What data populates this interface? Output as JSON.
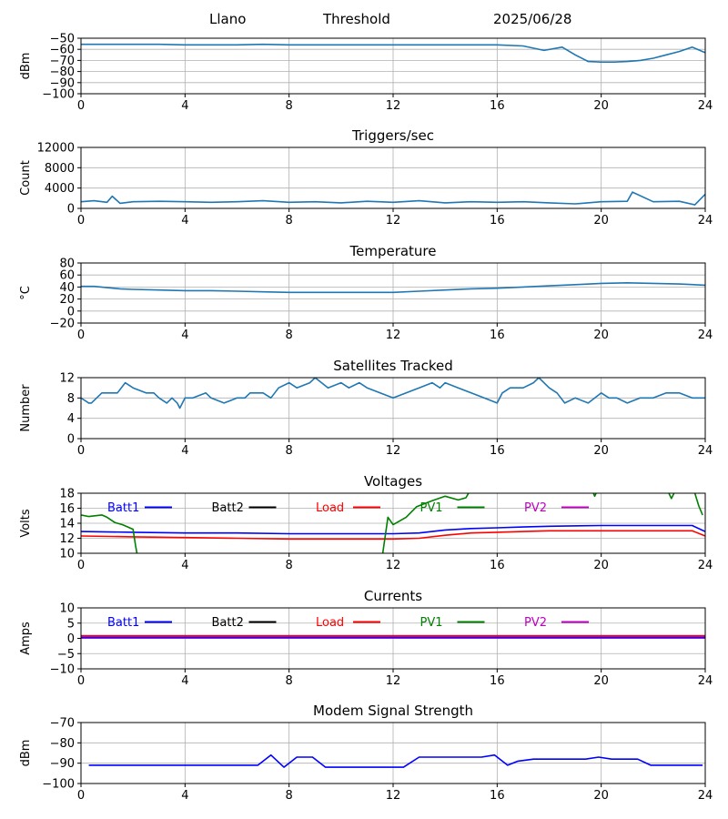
{
  "header": {
    "site": "Llano",
    "mode": "Threshold",
    "date": "2025/06/28"
  },
  "colors": {
    "default": "#1f77b4",
    "Batt1": "#0000ff",
    "Batt2": "#000000",
    "Load": "#ff0000",
    "PV1": "#008000",
    "PV2": "#bf00bf",
    "grid": "#b0b0b0"
  },
  "chart_data": [
    {
      "type": "line",
      "title": "",
      "xlabel": "",
      "ylabel": "dBm",
      "xlim": [
        0,
        24
      ],
      "ylim": [
        -100,
        -50
      ],
      "xticks": [
        0,
        4,
        8,
        12,
        16,
        20,
        24
      ],
      "yticks": [
        -100,
        -90,
        -80,
        -70,
        -60,
        -50
      ],
      "grid": true,
      "series": [
        {
          "color": "default",
          "x": [
            0,
            1,
            2,
            3,
            4,
            5,
            6,
            7,
            8,
            9,
            10,
            11,
            12,
            13,
            14,
            15,
            16,
            17,
            17.8,
            18.5,
            19,
            19.5,
            20,
            20.5,
            21,
            21.5,
            22,
            22.5,
            23,
            23.5,
            24
          ],
          "y": [
            -55.5,
            -55.5,
            -55.5,
            -55.5,
            -56,
            -56,
            -56,
            -55.5,
            -56,
            -56,
            -56,
            -56,
            -56,
            -56,
            -56,
            -56,
            -56,
            -57,
            -61,
            -58,
            -65,
            -71,
            -71.5,
            -71.5,
            -71,
            -70,
            -68,
            -65,
            -62,
            -58,
            -63
          ]
        }
      ]
    },
    {
      "type": "line",
      "title": "Triggers/sec",
      "xlabel": "",
      "ylabel": "Count",
      "xlim": [
        0,
        24
      ],
      "ylim": [
        0,
        12000
      ],
      "xticks": [
        0,
        4,
        8,
        12,
        16,
        20,
        24
      ],
      "yticks": [
        0,
        4000,
        8000,
        12000
      ],
      "grid": true,
      "series": [
        {
          "color": "default",
          "x": [
            0,
            0.5,
            1,
            1.2,
            1.5,
            2,
            3,
            4,
            5,
            6,
            7,
            8,
            9,
            10,
            11,
            12,
            13,
            14,
            15,
            16,
            17,
            18,
            19,
            20,
            21,
            21.2,
            22,
            23,
            23.6,
            24
          ],
          "y": [
            1300,
            1500,
            1200,
            2400,
            1000,
            1300,
            1400,
            1300,
            1200,
            1300,
            1500,
            1200,
            1300,
            1100,
            1400,
            1200,
            1500,
            1100,
            1300,
            1200,
            1300,
            1100,
            900,
            1300,
            1400,
            3200,
            1300,
            1400,
            700,
            2800
          ]
        }
      ]
    },
    {
      "type": "line",
      "title": "Temperature",
      "xlabel": "",
      "ylabel": "°C",
      "xlim": [
        0,
        24
      ],
      "ylim": [
        -20,
        80
      ],
      "xticks": [
        0,
        4,
        8,
        12,
        16,
        20,
        24
      ],
      "yticks": [
        -20,
        0,
        20,
        40,
        60,
        80
      ],
      "grid": true,
      "series": [
        {
          "color": "default",
          "x": [
            0,
            0.5,
            1,
            1.5,
            2,
            3,
            4,
            5,
            6,
            7,
            8,
            9,
            10,
            11,
            12,
            13,
            14,
            15,
            16,
            17,
            18,
            19,
            20,
            21,
            22,
            23,
            24
          ],
          "y": [
            41,
            41,
            39,
            37,
            36,
            35,
            34,
            34,
            33,
            32,
            31,
            31,
            31,
            31,
            31,
            33,
            35,
            37,
            38,
            40,
            42,
            44,
            46,
            47,
            46,
            45,
            43
          ]
        }
      ]
    },
    {
      "type": "line",
      "title": "Satellites Tracked",
      "xlabel": "",
      "ylabel": "Number",
      "xlim": [
        0,
        24
      ],
      "ylim": [
        0,
        12
      ],
      "xticks": [
        0,
        4,
        8,
        12,
        16,
        20,
        24
      ],
      "yticks": [
        0,
        4,
        8,
        12
      ],
      "grid": true,
      "series": [
        {
          "color": "default",
          "x": [
            0,
            0.3,
            0.4,
            0.8,
            1,
            1.4,
            1.7,
            2,
            2.5,
            2.8,
            3,
            3.3,
            3.5,
            3.7,
            3.8,
            4,
            4.3,
            4.8,
            5,
            5.5,
            6,
            6.3,
            6.5,
            7,
            7.3,
            7.6,
            8,
            8.3,
            8.8,
            9,
            9.5,
            10,
            10.3,
            10.7,
            11,
            11.5,
            12,
            12.5,
            13,
            13.5,
            13.8,
            14,
            14.5,
            15,
            15.5,
            16,
            16.2,
            16.5,
            17,
            17.4,
            17.6,
            18,
            18.3,
            18.6,
            19,
            19.5,
            20,
            20.3,
            20.6,
            21,
            21.5,
            22,
            22.5,
            23,
            23.5,
            24
          ],
          "y": [
            8,
            7,
            7,
            9,
            9,
            9,
            11,
            10,
            9,
            9,
            8,
            7,
            8,
            7,
            6,
            8,
            8,
            9,
            8,
            7,
            8,
            8,
            9,
            9,
            8,
            10,
            11,
            10,
            11,
            12,
            10,
            11,
            10,
            11,
            10,
            9,
            8,
            9,
            10,
            11,
            10,
            11,
            10,
            9,
            8,
            7,
            9,
            10,
            10,
            11,
            12,
            10,
            9,
            7,
            8,
            7,
            9,
            8,
            8,
            7,
            8,
            8,
            9,
            9,
            8,
            8
          ]
        }
      ]
    },
    {
      "type": "line",
      "title": "Voltages",
      "xlabel": "",
      "ylabel": "Volts",
      "xlim": [
        0,
        24
      ],
      "ylim": [
        10,
        18
      ],
      "xticks": [
        0,
        4,
        8,
        12,
        16,
        20,
        24
      ],
      "yticks": [
        10,
        12,
        14,
        16,
        18
      ],
      "grid": true,
      "legend": [
        "Batt1",
        "Batt2",
        "Load",
        "PV1",
        "PV2"
      ],
      "legend_placement": "top, one row",
      "series": [
        {
          "name": "Batt1",
          "color": "Batt1",
          "x": [
            0,
            2,
            4,
            6,
            8,
            10,
            12,
            13,
            14,
            15,
            16,
            17,
            18,
            20,
            22,
            23.5,
            24
          ],
          "y": [
            12.9,
            12.8,
            12.7,
            12.7,
            12.6,
            12.6,
            12.6,
            12.7,
            13.1,
            13.3,
            13.4,
            13.5,
            13.6,
            13.7,
            13.7,
            13.7,
            12.9
          ]
        },
        {
          "name": "Load",
          "color": "Load",
          "x": [
            0,
            2,
            4,
            6,
            8,
            10,
            12,
            13,
            14,
            15,
            16,
            17,
            18,
            20,
            22,
            23.5,
            24
          ],
          "y": [
            12.3,
            12.2,
            12.1,
            12.0,
            11.9,
            11.9,
            11.9,
            12.0,
            12.4,
            12.7,
            12.8,
            12.9,
            13.0,
            13.0,
            13.0,
            13.0,
            12.3
          ]
        },
        {
          "name": "PV1",
          "color": "PV1",
          "x": [
            0,
            0.3,
            0.8,
            1,
            1.3,
            1.6,
            2.0,
            2.1,
            2.15
          ],
          "y": [
            15.1,
            14.9,
            15.1,
            14.8,
            14.1,
            13.8,
            13.2,
            11.0,
            10
          ]
        },
        {
          "name": "PV1",
          "color": "PV1",
          "x": [
            11.6,
            11.8,
            12.0,
            12.5,
            12.9,
            13.5,
            14.0,
            14.5,
            14.8,
            14.9
          ],
          "y": [
            10,
            14.8,
            13.8,
            14.8,
            16.2,
            17.0,
            17.6,
            17.1,
            17.4,
            18
          ]
        },
        {
          "name": "PV1",
          "color": "PV1",
          "x": [
            19.7,
            19.75,
            19.8
          ],
          "y": [
            18,
            17.6,
            18
          ]
        },
        {
          "name": "PV1",
          "color": "PV1",
          "x": [
            22.6,
            22.7,
            22.8
          ],
          "y": [
            18,
            17.3,
            18
          ]
        },
        {
          "name": "PV1",
          "color": "PV1",
          "x": [
            23.6,
            23.75,
            23.9
          ],
          "y": [
            18,
            16.3,
            15.1
          ]
        }
      ]
    },
    {
      "type": "line",
      "title": "Currents",
      "xlabel": "",
      "ylabel": "Amps",
      "xlim": [
        0,
        24
      ],
      "ylim": [
        -10,
        10
      ],
      "xticks": [
        0,
        4,
        8,
        12,
        16,
        20,
        24
      ],
      "yticks": [
        -10,
        -5,
        0,
        5,
        10
      ],
      "grid": true,
      "legend": [
        "Batt1",
        "Batt2",
        "Load",
        "PV1",
        "PV2"
      ],
      "legend_placement": "top, one row",
      "series": [
        {
          "name": "PV2",
          "color": "PV2",
          "x": [
            0,
            24
          ],
          "y": [
            0.1,
            0.1
          ]
        },
        {
          "name": "Load",
          "color": "Load",
          "x": [
            0,
            24
          ],
          "y": [
            0.9,
            0.9
          ]
        },
        {
          "name": "Batt1",
          "color": "Batt1",
          "x": [
            0,
            24
          ],
          "y": [
            0.4,
            0.4
          ]
        }
      ]
    },
    {
      "type": "line",
      "title": "Modem Signal Strength",
      "xlabel": "",
      "ylabel": "dBm",
      "xlim": [
        0,
        24
      ],
      "ylim": [
        -100,
        -70
      ],
      "xticks": [
        0,
        4,
        8,
        12,
        16,
        20,
        24
      ],
      "yticks": [
        -100,
        -90,
        -80,
        -70
      ],
      "grid": true,
      "series": [
        {
          "color": "Batt1",
          "x": [
            0.3,
            6.8,
            7.3,
            7.8,
            8.3,
            8.9,
            9.4,
            11.8,
            12.4,
            13.0,
            15.4,
            15.9,
            16.4,
            16.8,
            17.4,
            19.4,
            19.9,
            20.4,
            21.4,
            21.9,
            23.9
          ],
          "y": [
            -91,
            -91,
            -86,
            -92,
            -87,
            -87,
            -92,
            -92,
            -92,
            -87,
            -87,
            -86,
            -91,
            -89,
            -88,
            -88,
            -87,
            -88,
            -88,
            -91,
            -91
          ]
        }
      ]
    }
  ]
}
